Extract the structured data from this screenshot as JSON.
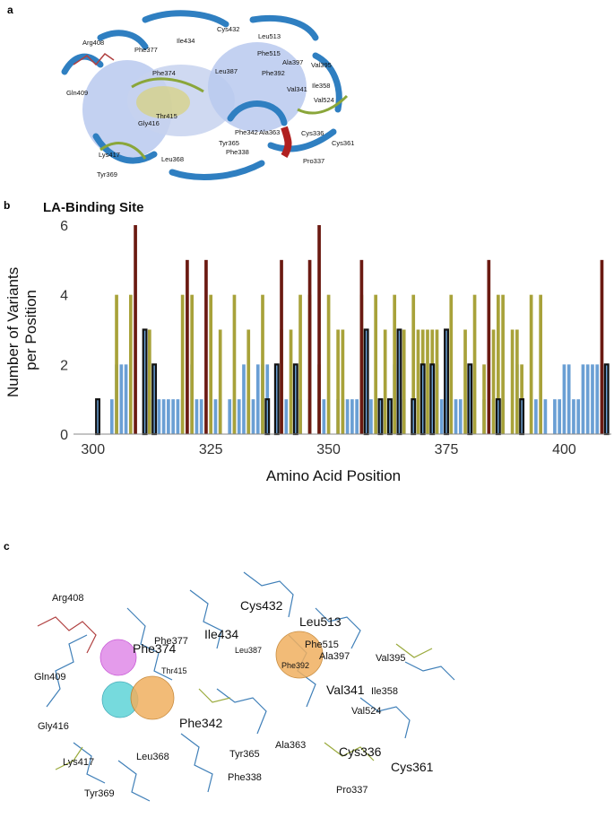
{
  "panels": {
    "a_letter": "a",
    "b_letter": "b",
    "c_letter": "c"
  },
  "colors": {
    "blue_bar": "#6a9fd4",
    "olive_bar": "#a8a23a",
    "red_bar": "#6b1a12",
    "outline": "#111111",
    "ribbon_blue": "#2f7fc1",
    "surface_blue": "#b9c9ee"
  },
  "panel_a": {
    "labels": [
      "Arg408",
      "Phe377",
      "Ile434",
      "Cys432",
      "Leu513",
      "Phe515",
      "Ala397",
      "Val395",
      "Phe374",
      "Leu387",
      "Phe392",
      "Gln409",
      "Val341",
      "Ile358",
      "Val524",
      "Thr415",
      "Gly416",
      "Phe342",
      "Ala363",
      "Cys336",
      "Cys361",
      "Tyr365",
      "Phe338",
      "Pro337",
      "Lys417",
      "Leu368",
      "Tyr369"
    ]
  },
  "panel_c": {
    "labels": [
      "Arg408",
      "Phe377",
      "Ile434",
      "Cys432",
      "Leu513",
      "Phe515",
      "Ala397",
      "Val395",
      "Leu387",
      "Phe374",
      "Thr415",
      "Phe392",
      "Val341",
      "Ile358",
      "Gln409",
      "Phe342",
      "Val524",
      "Gly416",
      "Tyr365",
      "Ala363",
      "Cys336",
      "Cys361",
      "Lys417",
      "Leu368",
      "Phe338",
      "Pro337",
      "Tyr369"
    ]
  },
  "chart_data": {
    "type": "bar",
    "title": "LA-Binding Site",
    "xlabel": "Amino Acid Position",
    "ylabel": "Number of Variants per Position",
    "xlim": [
      297,
      410
    ],
    "ylim": [
      0,
      6
    ],
    "xticks": [
      "300",
      "325",
      "350",
      "375",
      "400"
    ],
    "yticks": [
      "0",
      "2",
      "4",
      "6"
    ],
    "grid": false,
    "series": [
      {
        "color": "#6a9fd4",
        "outlined": false,
        "points": [
          [
            304,
            1
          ],
          [
            305,
            2
          ],
          [
            306,
            2
          ],
          [
            307,
            2
          ],
          [
            311,
            1
          ],
          [
            312,
            1
          ],
          [
            313,
            1
          ],
          [
            314,
            1
          ],
          [
            315,
            1
          ],
          [
            316,
            1
          ],
          [
            317,
            1
          ],
          [
            318,
            1
          ],
          [
            319,
            1
          ],
          [
            321,
            2
          ],
          [
            322,
            1
          ],
          [
            323,
            1
          ],
          [
            326,
            1
          ],
          [
            327,
            1
          ],
          [
            329,
            1
          ],
          [
            330,
            1
          ],
          [
            331,
            1
          ],
          [
            332,
            2
          ],
          [
            333,
            1
          ],
          [
            334,
            1
          ],
          [
            335,
            2
          ],
          [
            336,
            2
          ],
          [
            337,
            2
          ],
          [
            341,
            1
          ],
          [
            344,
            1
          ],
          [
            346,
            1
          ],
          [
            348,
            1
          ],
          [
            349,
            1
          ],
          [
            352,
            1
          ],
          [
            353,
            1
          ],
          [
            354,
            1
          ],
          [
            355,
            1
          ],
          [
            356,
            1
          ],
          [
            358,
            2
          ],
          [
            359,
            1
          ],
          [
            361,
            1
          ],
          [
            362,
            1
          ],
          [
            364,
            2
          ],
          [
            366,
            1
          ],
          [
            370,
            1
          ],
          [
            373,
            2
          ],
          [
            374,
            1
          ],
          [
            377,
            1
          ],
          [
            378,
            1
          ],
          [
            380,
            1
          ],
          [
            383,
            1
          ],
          [
            385,
            1
          ],
          [
            387,
            1
          ],
          [
            390,
            2
          ],
          [
            391,
            1
          ],
          [
            394,
            1
          ],
          [
            396,
            1
          ],
          [
            398,
            1
          ],
          [
            399,
            1
          ],
          [
            400,
            2
          ],
          [
            401,
            2
          ],
          [
            402,
            1
          ],
          [
            403,
            1
          ],
          [
            404,
            2
          ],
          [
            405,
            2
          ],
          [
            406,
            2
          ],
          [
            407,
            2
          ],
          [
            408,
            2
          ]
        ]
      },
      {
        "color": "#a8a23a",
        "outlined": false,
        "points": [
          [
            305,
            4
          ],
          [
            308,
            4
          ],
          [
            312,
            3
          ],
          [
            319,
            4
          ],
          [
            321,
            4
          ],
          [
            325,
            4
          ],
          [
            327,
            3
          ],
          [
            330,
            4
          ],
          [
            333,
            3
          ],
          [
            336,
            4
          ],
          [
            340,
            3
          ],
          [
            342,
            3
          ],
          [
            344,
            4
          ],
          [
            346,
            4
          ],
          [
            348,
            2
          ],
          [
            350,
            4
          ],
          [
            352,
            3
          ],
          [
            353,
            3
          ],
          [
            357,
            4
          ],
          [
            360,
            4
          ],
          [
            362,
            3
          ],
          [
            364,
            4
          ],
          [
            366,
            3
          ],
          [
            368,
            4
          ],
          [
            369,
            3
          ],
          [
            370,
            3
          ],
          [
            371,
            3
          ],
          [
            372,
            3
          ],
          [
            373,
            3
          ],
          [
            375,
            3
          ],
          [
            376,
            4
          ],
          [
            379,
            3
          ],
          [
            381,
            4
          ],
          [
            383,
            2
          ],
          [
            385,
            3
          ],
          [
            386,
            4
          ],
          [
            387,
            4
          ],
          [
            389,
            3
          ],
          [
            390,
            3
          ],
          [
            391,
            2
          ],
          [
            393,
            4
          ],
          [
            395,
            4
          ]
        ]
      },
      {
        "color": "#6b1a12",
        "outlined": false,
        "points": [
          [
            309,
            6
          ],
          [
            320,
            5
          ],
          [
            324,
            5
          ],
          [
            340,
            5
          ],
          [
            346,
            5
          ],
          [
            348,
            6
          ],
          [
            357,
            5
          ],
          [
            384,
            5
          ],
          [
            408,
            5
          ]
        ]
      },
      {
        "color": "#6a9fd4",
        "outlined": true,
        "points": [
          [
            301,
            1
          ],
          [
            311,
            3
          ],
          [
            313,
            2
          ],
          [
            337,
            1
          ],
          [
            339,
            2
          ],
          [
            343,
            2
          ],
          [
            358,
            3
          ],
          [
            361,
            1
          ],
          [
            363,
            1
          ],
          [
            365,
            3
          ],
          [
            368,
            1
          ],
          [
            370,
            2
          ],
          [
            372,
            2
          ],
          [
            375,
            3
          ],
          [
            380,
            2
          ],
          [
            386,
            1
          ],
          [
            391,
            1
          ],
          [
            409,
            2
          ]
        ]
      }
    ]
  }
}
